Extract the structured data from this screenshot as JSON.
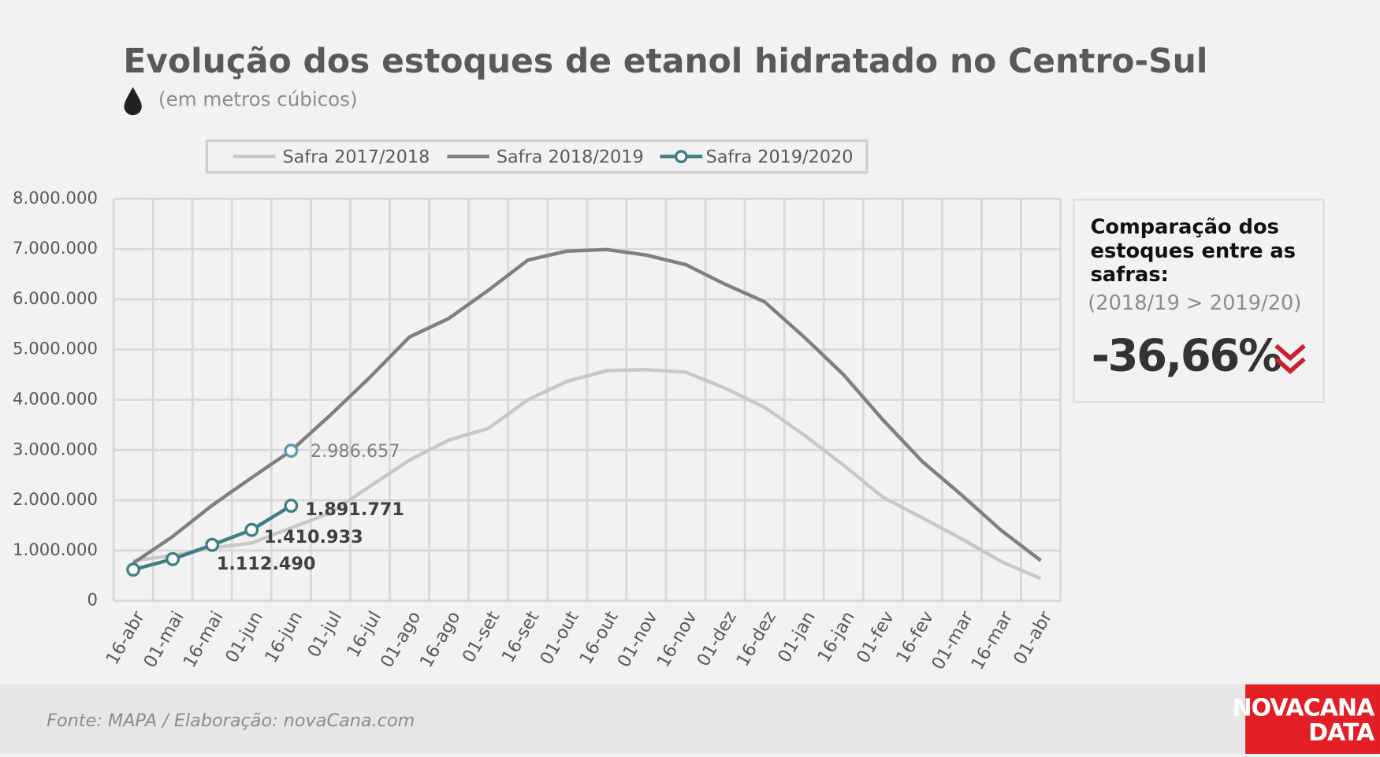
{
  "chart_data": {
    "type": "line",
    "title": "Evolução dos estoques de etanol hidratado no Centro-Sul",
    "subtitle": "(em metros cúbicos)",
    "categories": [
      "16-abr",
      "01-mai",
      "16-mai",
      "01-jun",
      "16-jun",
      "01-jul",
      "16-jul",
      "01-ago",
      "16-ago",
      "01-set",
      "16-set",
      "01-out",
      "16-out",
      "01-nov",
      "16-nov",
      "01-dez",
      "16-dez",
      "01-jan",
      "16-jan",
      "01-fev",
      "16-fev",
      "01-mar",
      "16-mar",
      "01-abr"
    ],
    "series": [
      {
        "name": "Safra 2017/2018",
        "color": "#c8c8c8",
        "values": [
          800000,
          900000,
          1050000,
          1150000,
          1450000,
          1750000,
          2280000,
          2800000,
          3200000,
          3430000,
          4000000,
          4370000,
          4580000,
          4600000,
          4550000,
          4230000,
          3850000,
          3300000,
          2700000,
          2060000,
          1650000,
          1230000,
          780000,
          440000
        ]
      },
      {
        "name": "Safra 2018/2019",
        "color": "#808080",
        "marker_color": "#5b9aa8",
        "values": [
          750000,
          1280000,
          1900000,
          2450000,
          2986657,
          3700000,
          4450000,
          5250000,
          5620000,
          6180000,
          6780000,
          6960000,
          6990000,
          6880000,
          6690000,
          6300000,
          5950000,
          5250000,
          4500000,
          3600000,
          2770000,
          2100000,
          1400000,
          800000
        ],
        "value_labels": [
          null,
          null,
          null,
          null,
          "2.986.657",
          null,
          null,
          null,
          null,
          null,
          null,
          null,
          null,
          null,
          null,
          null,
          null,
          null,
          null,
          null,
          null,
          null,
          null,
          null
        ]
      },
      {
        "name": "Safra 2019/2020",
        "color": "#3e7f87",
        "marker_color": "#3e7f87",
        "values": [
          620000,
          830000,
          1112490,
          1410933,
          1891771,
          null,
          null,
          null,
          null,
          null,
          null,
          null,
          null,
          null,
          null,
          null,
          null,
          null,
          null,
          null,
          null,
          null,
          null,
          null
        ],
        "value_labels": [
          null,
          null,
          "1.112.490",
          "1.410.933",
          "1.891.771",
          null,
          null,
          null,
          null,
          null,
          null,
          null,
          null,
          null,
          null,
          null,
          null,
          null,
          null,
          null,
          null,
          null,
          null,
          null
        ]
      }
    ],
    "ylim": [
      0,
      8000000
    ],
    "yticks": [
      0,
      {
        "value": 1000000,
        "label": "1.000.000"
      },
      {
        "value": 2000000,
        "label": "2.000.000"
      },
      {
        "value": 3000000,
        "label": "3.000.000"
      },
      {
        "value": 4000000,
        "label": "4.000.000"
      },
      {
        "value": 5000000,
        "label": "5.000.000"
      },
      {
        "value": 6000000,
        "label": "6.000.000"
      },
      {
        "value": 7000000,
        "label": "7.000.000"
      },
      {
        "value": 8000000,
        "label": "8.000.000"
      }
    ],
    "grid": true,
    "legend": "top"
  },
  "comparison": {
    "title_lines": [
      "Comparação dos",
      "estoques entre as",
      "safras:"
    ],
    "subtitle": "(2018/19 > 2019/20)",
    "value": "-36,66%"
  },
  "footer": {
    "source": "Fonte: MAPA  / Elaboração: novaCana.com",
    "logo_lines": [
      "NOVACANA",
      "DATA"
    ]
  }
}
